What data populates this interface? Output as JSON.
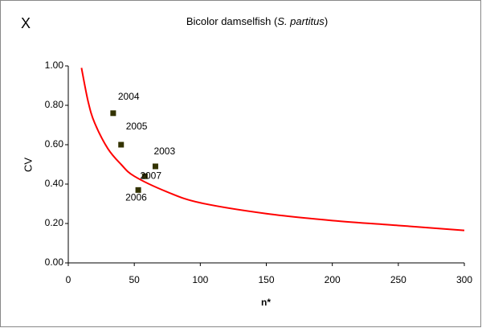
{
  "chart_data": {
    "type": "scatter",
    "panel_label": "X",
    "title_parts": [
      "Bicolor damselfish (",
      "S. partitus",
      ")"
    ],
    "x_label": "n*",
    "y_label": "CV",
    "series": [
      {
        "type": "scatter",
        "color": "#333300",
        "x": [
          34,
          40,
          66,
          58,
          53
        ],
        "values": [
          0.76,
          0.6,
          0.49,
          0.44,
          0.37
        ],
        "labels": [
          "2004",
          "2005",
          "2003",
          "2007",
          "2006"
        ]
      },
      {
        "type": "line",
        "color": "#ff0000",
        "x": [
          10,
          15,
          20,
          30,
          40,
          50,
          75,
          100,
          150,
          200,
          250,
          300
        ],
        "values": [
          0.99,
          0.82,
          0.71,
          0.58,
          0.5,
          0.44,
          0.36,
          0.305,
          0.25,
          0.215,
          0.19,
          0.165
        ]
      }
    ],
    "xlim": [
      0,
      300
    ],
    "xticks": [
      0,
      50,
      100,
      150,
      200,
      250,
      300
    ],
    "ylim": [
      0,
      1
    ],
    "yticks": [
      {
        "value": 0,
        "label": "0.00"
      },
      {
        "value": 0.2,
        "label": "0.20"
      },
      {
        "value": 0.4,
        "label": "0.40"
      },
      {
        "value": 0.6,
        "label": "0.60"
      },
      {
        "value": 0.8,
        "label": "0.80"
      },
      {
        "value": 1,
        "label": "1.00"
      }
    ]
  }
}
